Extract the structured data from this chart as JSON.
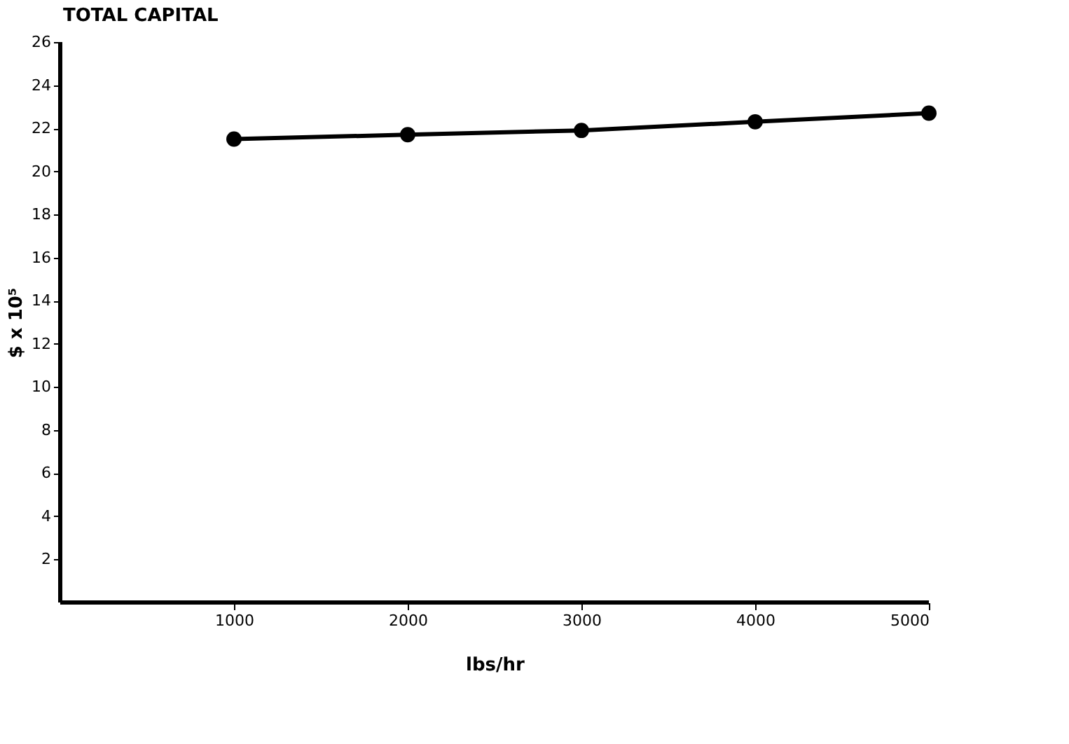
{
  "chart_data": {
    "type": "line",
    "title": "TOTAL CAPITAL",
    "xlabel": "lbs/hr",
    "ylabel": "$ x 10⁵",
    "x": [
      1000,
      2000,
      3000,
      4000,
      5000
    ],
    "series": [
      {
        "color": "#000000",
        "values": [
          21.5,
          21.7,
          21.9,
          22.3,
          22.7
        ]
      }
    ],
    "xlim": [
      0,
      5000
    ],
    "xticks": [
      1000,
      2000,
      3000,
      4000,
      5000
    ],
    "ylim": [
      0,
      26
    ],
    "yticks": [
      2,
      4,
      6,
      8,
      10,
      12,
      14,
      16,
      18,
      20,
      22,
      24,
      26
    ],
    "grid": false,
    "marker": "circle",
    "line_style": "solid"
  }
}
